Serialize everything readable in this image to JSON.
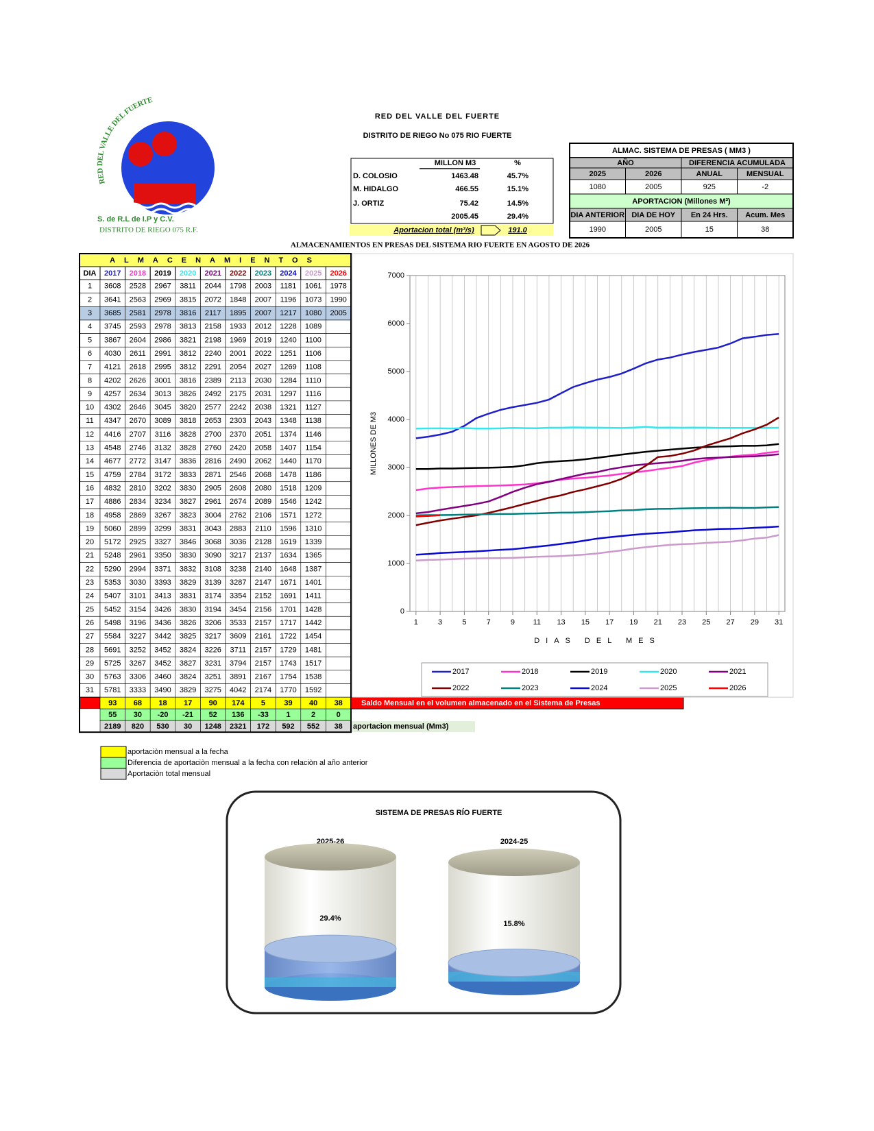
{
  "header": {
    "title": "RED DEL VALLE DEL FUERTE",
    "subtitle": "DISTRITO DE RIEGO No 075 RIO FUERTE"
  },
  "logo": {
    "arc_text": "RED DEL VALLE DEL FUERTE",
    "company": "S. de R.L de I.P y C.V.",
    "district": "DISTRITO DE RIEGO 075 R.F."
  },
  "dam_table": {
    "headers": [
      "MILLON  M3",
      "%"
    ],
    "rows": [
      {
        "name": "D. COLOSIO",
        "volume": "1463.48",
        "percent": "45.7%"
      },
      {
        "name": "M. HIDALGO",
        "volume": "466.55",
        "percent": "15.1%"
      },
      {
        "name": "J. ORTIZ",
        "volume": "75.42",
        "percent": "14.5%"
      },
      {
        "volume": "2005.45",
        "percent": "29.4%"
      }
    ],
    "aportacion_label": "Aportacion total (m³/s)",
    "aportacion_value": "191.0"
  },
  "summary": {
    "title": "ALMAC. SISTEMA  DE  PRESAS  ( MM3 )",
    "groups": [
      "AÑO",
      "DIFERENCIA ACUMULADA"
    ],
    "headers": [
      "2025",
      "2026",
      "ANUAL",
      "MENSUAL"
    ],
    "values": [
      "1080",
      "2005",
      "925",
      "-2"
    ],
    "aportacion_title": "APORTACION (Millones M³)",
    "aportacion_headers": [
      "DIA ANTERIOR",
      "DIA DE HOY",
      "En 24 Hrs.",
      "Acum. Mes"
    ],
    "aportacion_values": [
      "1990",
      "2005",
      "15",
      "38"
    ]
  },
  "main_title": "ALMACENAMIENTOS  EN  PRESAS  DEL  SISTEMA  RIO  FUERTE  EN  AGOSTO  DE  2026",
  "table": {
    "title": "ALMACENAMIENTOS",
    "dia_header": "DIA",
    "saldo_row": [
      93,
      68,
      18,
      17,
      90,
      174,
      5,
      39,
      40,
      38
    ],
    "diff_row": [
      55,
      30,
      -20,
      -21,
      52,
      136,
      -33,
      1,
      2,
      0
    ],
    "total_row": [
      2189,
      820,
      530,
      30,
      1248,
      2321,
      172,
      592,
      552,
      38
    ],
    "saldo_label": "Saldo Mensual en el volumen almacenado en el Sistema de Presas",
    "total_label": "aportacion mensual (Mm3)"
  },
  "chart_data": {
    "type": "line",
    "x_label": "DIAS DEL MES",
    "y_label": "MILLONES  DE  M3",
    "x": [
      1,
      2,
      3,
      4,
      5,
      6,
      7,
      8,
      9,
      10,
      11,
      12,
      13,
      14,
      15,
      16,
      17,
      18,
      19,
      20,
      21,
      22,
      23,
      24,
      25,
      26,
      27,
      28,
      29,
      30,
      31
    ],
    "xlim": [
      0.5,
      31.5
    ],
    "xticks": [
      1,
      3,
      5,
      7,
      9,
      11,
      13,
      15,
      17,
      19,
      21,
      23,
      25,
      27,
      29,
      31
    ],
    "ylim": [
      0,
      7000
    ],
    "yticks": [
      0,
      1000,
      2000,
      3000,
      4000,
      5000,
      6000,
      7000
    ],
    "grid": true,
    "series": [
      {
        "name": "2017",
        "color": "#1f1fc8",
        "values": [
          3608,
          3641,
          3685,
          3745,
          3867,
          4030,
          4121,
          4202,
          4257,
          4302,
          4347,
          4416,
          4548,
          4677,
          4759,
          4832,
          4886,
          4958,
          5060,
          5172,
          5248,
          5290,
          5353,
          5407,
          5452,
          5498,
          5584,
          5691,
          5725,
          5763,
          5781
        ]
      },
      {
        "name": "2018",
        "color": "#ff33cc",
        "values": [
          2528,
          2563,
          2581,
          2593,
          2604,
          2611,
          2618,
          2626,
          2634,
          2646,
          2670,
          2707,
          2746,
          2772,
          2784,
          2810,
          2834,
          2869,
          2899,
          2925,
          2961,
          2994,
          3030,
          3101,
          3154,
          3196,
          3227,
          3252,
          3267,
          3306,
          3333
        ]
      },
      {
        "name": "2019",
        "color": "#000000",
        "values": [
          2967,
          2969,
          2978,
          2978,
          2986,
          2991,
          2995,
          3001,
          3013,
          3045,
          3089,
          3116,
          3132,
          3147,
          3172,
          3202,
          3234,
          3267,
          3299,
          3327,
          3350,
          3371,
          3393,
          3413,
          3426,
          3436,
          3442,
          3452,
          3452,
          3460,
          3490
        ]
      },
      {
        "name": "2020",
        "color": "#33e6f0",
        "values": [
          3811,
          3815,
          3816,
          3813,
          3821,
          3812,
          3812,
          3816,
          3826,
          3820,
          3818,
          3828,
          3828,
          3836,
          3833,
          3830,
          3827,
          3823,
          3831,
          3846,
          3830,
          3832,
          3829,
          3831,
          3830,
          3826,
          3825,
          3824,
          3827,
          3824,
          3829
        ]
      },
      {
        "name": "2021",
        "color": "#800080",
        "values": [
          2044,
          2072,
          2117,
          2158,
          2198,
          2240,
          2291,
          2389,
          2492,
          2577,
          2653,
          2700,
          2760,
          2816,
          2871,
          2905,
          2961,
          3004,
          3043,
          3068,
          3090,
          3108,
          3139,
          3174,
          3194,
          3206,
          3217,
          3226,
          3231,
          3251,
          3275
        ]
      },
      {
        "name": "2022",
        "color": "#800000",
        "values": [
          1798,
          1848,
          1895,
          1933,
          1969,
          2001,
          2054,
          2113,
          2175,
          2242,
          2303,
          2370,
          2420,
          2490,
          2546,
          2608,
          2674,
          2762,
          2883,
          3036,
          3217,
          3238,
          3287,
          3354,
          3454,
          3533,
          3609,
          3711,
          3794,
          3891,
          4042
        ]
      },
      {
        "name": "2023",
        "color": "#008080",
        "values": [
          2003,
          2007,
          2007,
          2012,
          2019,
          2022,
          2027,
          2030,
          2031,
          2038,
          2043,
          2051,
          2058,
          2062,
          2068,
          2080,
          2089,
          2106,
          2110,
          2128,
          2137,
          2140,
          2147,
          2152,
          2156,
          2157,
          2161,
          2157,
          2157,
          2167,
          2174
        ]
      },
      {
        "name": "2024",
        "color": "#0a0ad0",
        "values": [
          1181,
          1196,
          1217,
          1228,
          1240,
          1251,
          1269,
          1284,
          1297,
          1321,
          1348,
          1374,
          1407,
          1440,
          1478,
          1518,
          1546,
          1571,
          1596,
          1619,
          1634,
          1648,
          1671,
          1691,
          1701,
          1717,
          1722,
          1729,
          1743,
          1754,
          1770
        ]
      },
      {
        "name": "2025",
        "color": "#cc99cc",
        "values": [
          1061,
          1073,
          1080,
          1089,
          1100,
          1106,
          1108,
          1110,
          1116,
          1127,
          1138,
          1146,
          1154,
          1170,
          1186,
          1209,
          1242,
          1272,
          1310,
          1339,
          1365,
          1387,
          1401,
          1411,
          1428,
          1442,
          1454,
          1481,
          1517,
          1538,
          1592
        ]
      },
      {
        "name": "2026",
        "color": "#ff0000",
        "values": [
          1978,
          1990,
          2005,
          null,
          null,
          null,
          null,
          null,
          null,
          null,
          null,
          null,
          null,
          null,
          null,
          null,
          null,
          null,
          null,
          null,
          null,
          null,
          null,
          null,
          null,
          null,
          null,
          null,
          null,
          null,
          null
        ]
      }
    ]
  },
  "legend_notes": [
    "aportaciòn  mensual a la fecha",
    "Diferencia de aportaciòn mensual a la fecha con relaciòn al año anterior",
    "Aportaciòn total mensual"
  ],
  "gauges": {
    "title": "SISTEMA DE PRESAS RÍO FUERTE",
    "ylim": [
      0,
      100
    ],
    "items": [
      {
        "label": "2025-26",
        "value": 29.4,
        "value_label": "29.4%"
      },
      {
        "label": "2024-25",
        "value": 15.8,
        "value_label": "15.8%"
      }
    ]
  }
}
